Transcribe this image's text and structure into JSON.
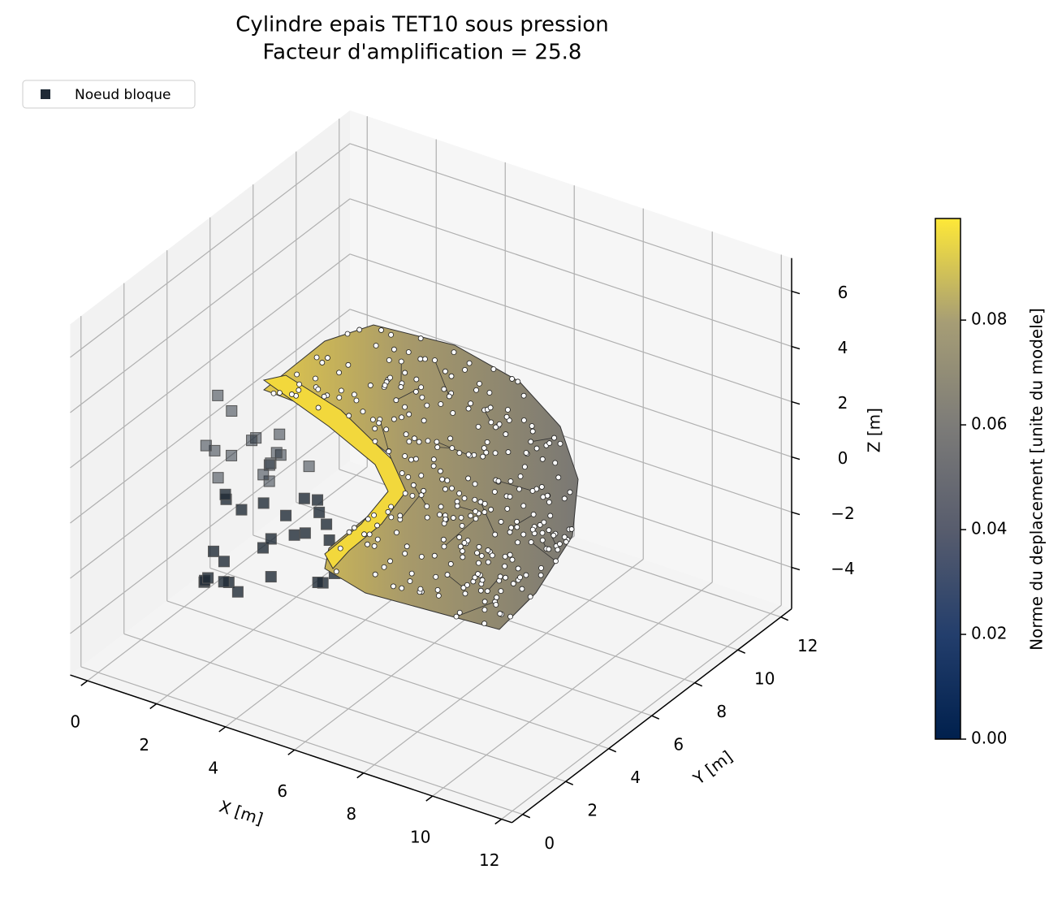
{
  "chart_data": {
    "type": "mesh3d",
    "title": "Cylindre epais TET10 sous pression",
    "subtitle": "Facteur d'amplification = 25.8",
    "xlabel": "X [m]",
    "ylabel": "Y [m]",
    "zlabel": "Z [m]",
    "xlim": [
      -0.5,
      12.3
    ],
    "ylim": [
      -0.5,
      12.5
    ],
    "zlim": [
      -5.5,
      7.2
    ],
    "xticks": [
      0,
      2,
      4,
      6,
      8,
      10,
      12
    ],
    "yticks": [
      0,
      2,
      4,
      6,
      8,
      10,
      12
    ],
    "zticks": [
      {
        "value": -4,
        "label": "−4"
      },
      {
        "value": -2,
        "label": "−2"
      },
      0,
      2,
      4,
      6
    ],
    "grid": true,
    "series": [
      {
        "name": "Noeud bloque",
        "color": "#1f2a36"
      }
    ],
    "legend": "upper left",
    "colormap": "cividis",
    "colorbar_label": "Norme du deplacement [unite du modele]",
    "clim": [
      0,
      0.0994
    ],
    "cticks": [
      {
        "value": 0,
        "label": "0.00"
      },
      {
        "value": 0.02,
        "label": "0.02"
      },
      {
        "value": 0.04,
        "label": "0.04"
      },
      {
        "value": 0.06,
        "label": "0.06"
      },
      {
        "value": 0.08,
        "label": "0.08"
      }
    ]
  }
}
